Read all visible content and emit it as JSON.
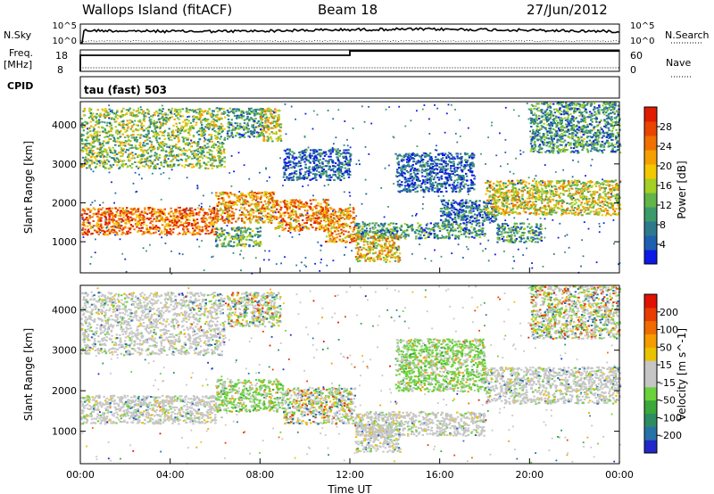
{
  "header": {
    "station": "Wallops Island (fitACF)",
    "beam": "Beam 18",
    "date": "27/Jun/2012"
  },
  "summary": {
    "nsky_label": "N.Sky",
    "nsky_ticks": [
      "10^5",
      "10^0"
    ],
    "nsearch_label": "N.Search",
    "nsearch_ticks": [
      "10^5",
      "10^0"
    ],
    "freq_label_top": "Freq.",
    "freq_label_unit": "[MHz]",
    "freq_ticks": [
      "18",
      "8"
    ],
    "nave_label": "Nave",
    "nave_ticks": [
      "60",
      "0"
    ],
    "cpid_label": "CPID",
    "cpid_value": "tau (fast) 503",
    "freq_steps": [
      {
        "from_hour": 0,
        "to_hour": 12.0,
        "mhz": 15.5
      },
      {
        "from_hour": 12.0,
        "to_hour": 24,
        "mhz": 17.5
      }
    ]
  },
  "chart_data": [
    {
      "type": "heatmap",
      "name": "Power",
      "ylabel": "Slant Range [km]",
      "xlabel": "Time UT",
      "xlim": [
        0,
        24
      ],
      "ylim": [
        200,
        4600
      ],
      "y_ticks": [
        "1000",
        "2000",
        "3000",
        "4000"
      ],
      "colorbar_label": "Power [dB]",
      "colorbar_ticks": [
        "4",
        "8",
        "12",
        "16",
        "20",
        "24",
        "28"
      ],
      "colorbar_colors": [
        "#0d1ae6",
        "#1f5faf",
        "#2e7a8d",
        "#3b9b6b",
        "#62b548",
        "#a4cf24",
        "#f3c800",
        "#f5a000",
        "#f07000",
        "#e84500",
        "#e01d00"
      ],
      "regions": [
        {
          "t0": 0.0,
          "t1": 6.4,
          "r0": 2900,
          "r1": 4450,
          "level": 0.45
        },
        {
          "t0": 6.5,
          "t1": 8.1,
          "r0": 3700,
          "r1": 4450,
          "level": 0.3
        },
        {
          "t0": 8.0,
          "t1": 8.9,
          "r0": 3600,
          "r1": 4450,
          "level": 0.55
        },
        {
          "t0": 0.0,
          "t1": 6.0,
          "r0": 1200,
          "r1": 1900,
          "level": 0.8
        },
        {
          "t0": 6.0,
          "t1": 8.6,
          "r0": 1500,
          "r1": 2300,
          "level": 0.7
        },
        {
          "t0": 8.6,
          "t1": 11.0,
          "r0": 1300,
          "r1": 2100,
          "level": 0.75
        },
        {
          "t0": 10.8,
          "t1": 12.2,
          "r0": 1000,
          "r1": 1900,
          "level": 0.7
        },
        {
          "t0": 12.2,
          "t1": 18.0,
          "r0": 1100,
          "r1": 1500,
          "level": 0.3
        },
        {
          "t0": 12.2,
          "t1": 14.2,
          "r0": 500,
          "r1": 1200,
          "level": 0.6
        },
        {
          "t0": 14.0,
          "t1": 17.5,
          "r0": 2300,
          "r1": 3300,
          "level": 0.15
        },
        {
          "t0": 16.0,
          "t1": 18.5,
          "r0": 1500,
          "r1": 2100,
          "level": 0.2
        },
        {
          "t0": 18.0,
          "t1": 24.0,
          "r0": 1700,
          "r1": 2600,
          "level": 0.55
        },
        {
          "t0": 18.5,
          "t1": 20.5,
          "r0": 1000,
          "r1": 1500,
          "level": 0.3
        },
        {
          "t0": 20.0,
          "t1": 24.0,
          "r0": 3300,
          "r1": 4600,
          "level": 0.3
        },
        {
          "t0": 6.0,
          "t1": 8.0,
          "r0": 900,
          "r1": 1400,
          "level": 0.4
        },
        {
          "t0": 9.0,
          "t1": 12.0,
          "r0": 2600,
          "r1": 3400,
          "level": 0.15
        }
      ]
    },
    {
      "type": "heatmap",
      "name": "Velocity",
      "ylabel": "Slant Range [km]",
      "xlabel": "Time UT",
      "xlim": [
        0,
        24
      ],
      "ylim": [
        200,
        4600
      ],
      "y_ticks": [
        "1000",
        "2000",
        "3000",
        "4000"
      ],
      "x_ticks": [
        "00:00",
        "04:00",
        "08:00",
        "12:00",
        "16:00",
        "20:00",
        "00:00"
      ],
      "colorbar_label": "Velocity [m s^-1]",
      "colorbar_ticks": [
        "200",
        "100",
        "50",
        "15",
        "-15",
        "-50",
        "-100",
        "-200"
      ],
      "colorbar_colors": [
        "#2128c8",
        "#2672a8",
        "#2e8c62",
        "#3aa83a",
        "#6ad23a",
        "#c6c6c6",
        "#c6c6c6",
        "#e9c200",
        "#f59c00",
        "#f16c00",
        "#e83c00",
        "#e01200"
      ],
      "regions": [
        {
          "t0": 0.0,
          "t1": 6.4,
          "r0": 2900,
          "r1": 4450,
          "kind": "gray"
        },
        {
          "t0": 6.5,
          "t1": 8.9,
          "r0": 3600,
          "r1": 4450,
          "kind": "mixed"
        },
        {
          "t0": 0.0,
          "t1": 6.0,
          "r0": 1200,
          "r1": 1900,
          "kind": "gray"
        },
        {
          "t0": 6.0,
          "t1": 9.0,
          "r0": 1500,
          "r1": 2300,
          "kind": "green"
        },
        {
          "t0": 9.0,
          "t1": 12.2,
          "r0": 1200,
          "r1": 2100,
          "kind": "mixed"
        },
        {
          "t0": 12.2,
          "t1": 18.0,
          "r0": 900,
          "r1": 1500,
          "kind": "gray"
        },
        {
          "t0": 12.2,
          "t1": 14.2,
          "r0": 500,
          "r1": 1200,
          "kind": "gray"
        },
        {
          "t0": 18.0,
          "t1": 24.0,
          "r0": 1700,
          "r1": 2600,
          "kind": "gray"
        },
        {
          "t0": 20.0,
          "t1": 24.0,
          "r0": 3300,
          "r1": 4600,
          "kind": "mixed"
        },
        {
          "t0": 14.0,
          "t1": 18.0,
          "r0": 2000,
          "r1": 3300,
          "kind": "green"
        }
      ]
    }
  ]
}
